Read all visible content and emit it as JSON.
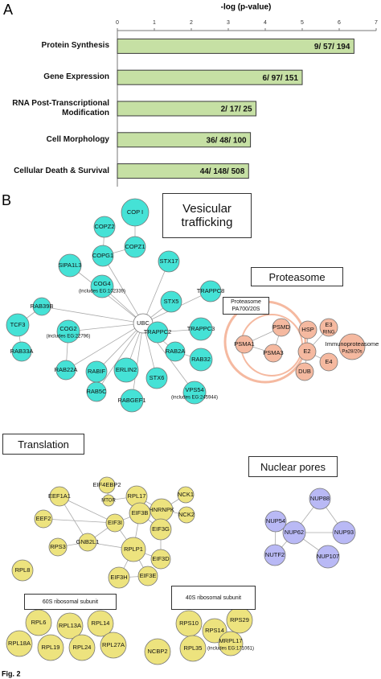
{
  "panel_labels": [
    "A",
    "B"
  ],
  "chart_data": {
    "type": "bar",
    "orientation": "horizontal",
    "title": "-log (p-value)",
    "categories": [
      "Protein Synthesis",
      "Gene Expression",
      "RNA Post-Transcriptional Modification",
      "Cell Morphology",
      "Cellular Death & Survival"
    ],
    "values": [
      6.4,
      5.0,
      3.75,
      3.6,
      3.55
    ],
    "annotations": [
      "9/ 57/ 194",
      "6/ 97/ 151",
      "2/ 17/ 25",
      "36/ 48/ 100",
      "44/ 148/ 508"
    ],
    "color": "#c6e0a4",
    "xlim": [
      0,
      7
    ],
    "xticks": [
      0,
      1,
      2,
      3,
      4,
      5,
      6,
      7
    ]
  },
  "network": {
    "groups": [
      {
        "title": "Vesicular trafficking",
        "color": "#45e2d6",
        "nodes": [
          {
            "label": "COP I"
          },
          {
            "label": "COPZ2"
          },
          {
            "label": "COPZ1"
          },
          {
            "label": "COPG1"
          },
          {
            "label": "SIPA1L3"
          },
          {
            "label": "STX17"
          },
          {
            "label": "COG4",
            "note": "(includes EG:102339)"
          },
          {
            "label": "TRAPPC8"
          },
          {
            "label": "STX5"
          },
          {
            "label": "TCF3"
          },
          {
            "label": "RAB39B"
          },
          {
            "label": "UBC"
          },
          {
            "label": "COG2",
            "note": "(includes EG:22796)"
          },
          {
            "label": "TRAPPC2"
          },
          {
            "label": "TRAPPC3"
          },
          {
            "label": "RAB33A"
          },
          {
            "label": "RAB22A"
          },
          {
            "label": "RABIF"
          },
          {
            "label": "ERLIN2"
          },
          {
            "label": "RAB2A"
          },
          {
            "label": "RAB32"
          },
          {
            "label": "STX6"
          },
          {
            "label": "RAB5C"
          },
          {
            "label": "RABGEF1"
          },
          {
            "label": "VPS54",
            "note": "(includes EG:245944)"
          }
        ]
      },
      {
        "title": "Proteasome",
        "subtitle": "Proteasome PA700/20S",
        "color": "#f5b9a0",
        "nodes": [
          {
            "label": "PSMD"
          },
          {
            "label": "PSMA1"
          },
          {
            "label": "PSMA3"
          },
          {
            "label": "HSP"
          },
          {
            "label": "E3",
            "note": "RING"
          },
          {
            "label": "E2"
          },
          {
            "label": "Immunoproteasome",
            "note": "Pa28/20s"
          },
          {
            "label": "E4"
          },
          {
            "label": "DUB"
          }
        ]
      },
      {
        "title": "Translation",
        "subgroups": [
          "60S ribosomal subunit",
          "40S ribosomal subunit"
        ],
        "color": "#ede37e",
        "nodes": [
          {
            "label": "EIF4EBP2"
          },
          {
            "label": "MTOR"
          },
          {
            "label": "EEF1A1"
          },
          {
            "label": "RPL17"
          },
          {
            "label": "HNRNPK"
          },
          {
            "label": "NCK1"
          },
          {
            "label": "EEF2"
          },
          {
            "label": "EIF3I"
          },
          {
            "label": "EIF3B"
          },
          {
            "label": "NCK2"
          },
          {
            "label": "GNB2L1"
          },
          {
            "label": "RPS3"
          },
          {
            "label": "EIF3G"
          },
          {
            "label": "RPLP1"
          },
          {
            "label": "RPL8"
          },
          {
            "label": "EIF3D"
          },
          {
            "label": "EIF3H"
          },
          {
            "label": "EIF3E"
          },
          {
            "label": "RPL6"
          },
          {
            "label": "RPL13A"
          },
          {
            "label": "RPL14"
          },
          {
            "label": "RPL18A"
          },
          {
            "label": "RPL19"
          },
          {
            "label": "RPL24"
          },
          {
            "label": "RPL27A"
          },
          {
            "label": "RPS10"
          },
          {
            "label": "RPS29"
          },
          {
            "label": "RPS14"
          },
          {
            "label": "NCBP2"
          },
          {
            "label": "RPL35"
          },
          {
            "label": "MRPL17",
            "note": "(includes EG:171061)"
          }
        ]
      },
      {
        "title": "Nuclear pores",
        "color": "#b9b9f5",
        "nodes": [
          {
            "label": "NUP54"
          },
          {
            "label": "NUP88"
          },
          {
            "label": "NUP62"
          },
          {
            "label": "NUP93"
          },
          {
            "label": "NUTF2"
          },
          {
            "label": "NUP107"
          }
        ]
      }
    ]
  },
  "caption": "Fig. 2"
}
